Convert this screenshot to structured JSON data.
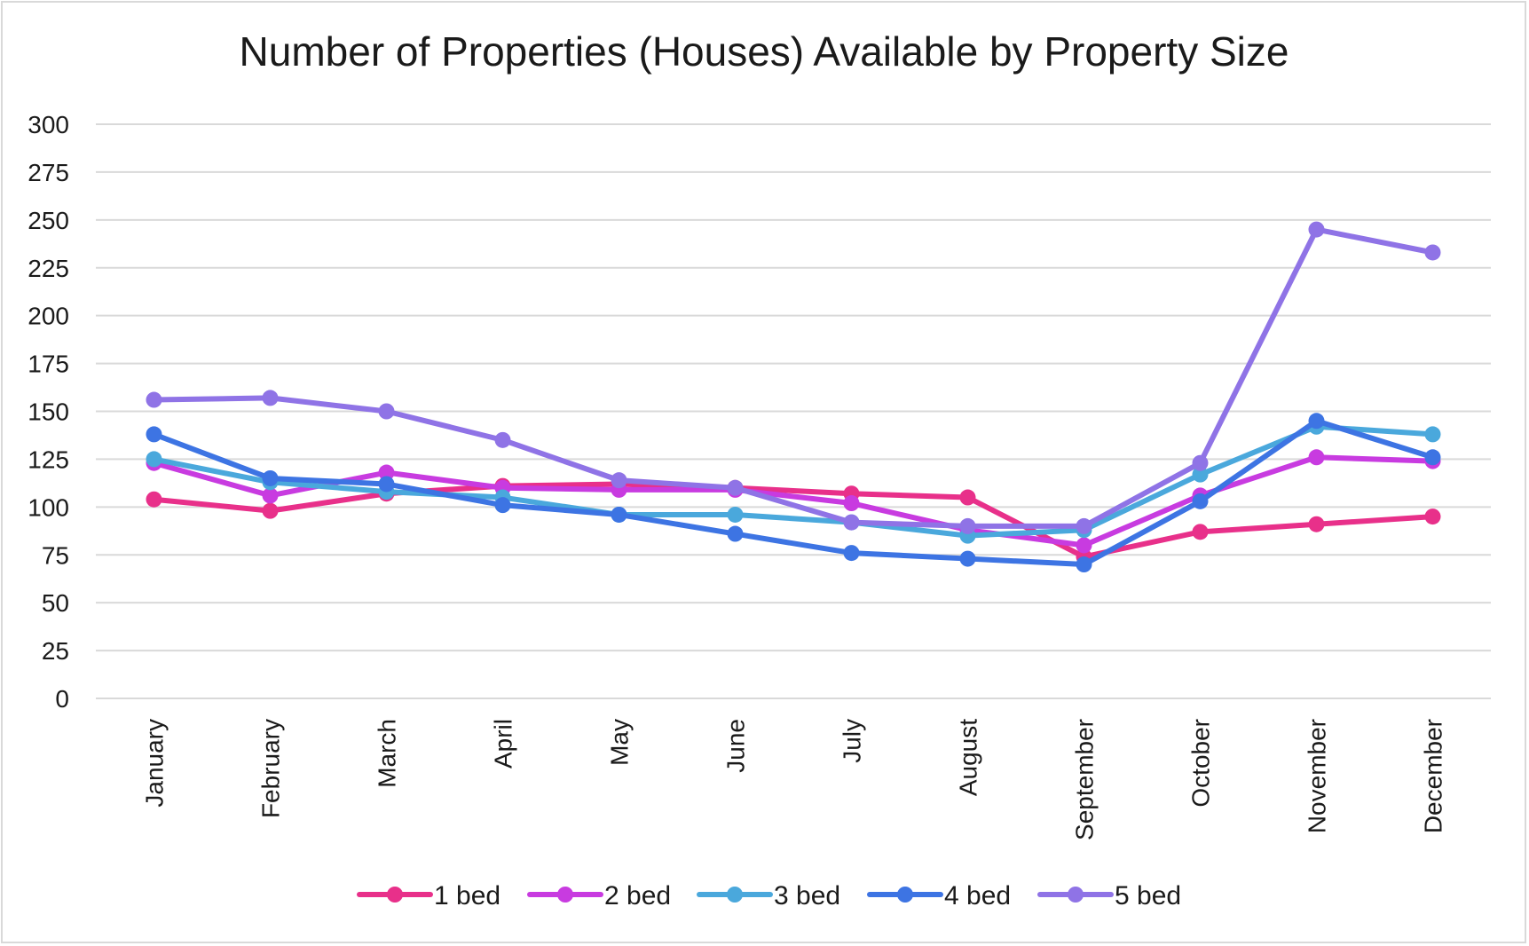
{
  "chart_data": {
    "type": "line",
    "title": "Number of Properties (Houses) Available by Property Size",
    "xlabel": "",
    "ylabel": "",
    "ylim": [
      0,
      300
    ],
    "y_ticks": [
      "0",
      "25",
      "50",
      "75",
      "100",
      "125",
      "150",
      "175",
      "200",
      "225",
      "250",
      "275",
      "300"
    ],
    "grid": true,
    "legend_position": "bottom",
    "categories": [
      "January",
      "February",
      "March",
      "April",
      "May",
      "June",
      "July",
      "August",
      "September",
      "October",
      "November",
      "December"
    ],
    "series": [
      {
        "name": "1 bed",
        "color": "#e8308a",
        "values": [
          104,
          98,
          107,
          111,
          112,
          110,
          107,
          105,
          74,
          87,
          91,
          95
        ]
      },
      {
        "name": "2 bed",
        "color": "#c83be0",
        "values": [
          123,
          106,
          118,
          110,
          109,
          109,
          102,
          88,
          80,
          106,
          126,
          124
        ]
      },
      {
        "name": "3 bed",
        "color": "#4aa8dc",
        "values": [
          125,
          113,
          108,
          105,
          96,
          96,
          92,
          85,
          88,
          117,
          142,
          138
        ]
      },
      {
        "name": "4 bed",
        "color": "#3d74e3",
        "values": [
          138,
          115,
          112,
          101,
          96,
          86,
          76,
          73,
          70,
          103,
          145,
          126
        ]
      },
      {
        "name": "5 bed",
        "color": "#8f73e6",
        "values": [
          156,
          157,
          150,
          135,
          114,
          110,
          92,
          90,
          90,
          123,
          245,
          233
        ]
      }
    ]
  }
}
